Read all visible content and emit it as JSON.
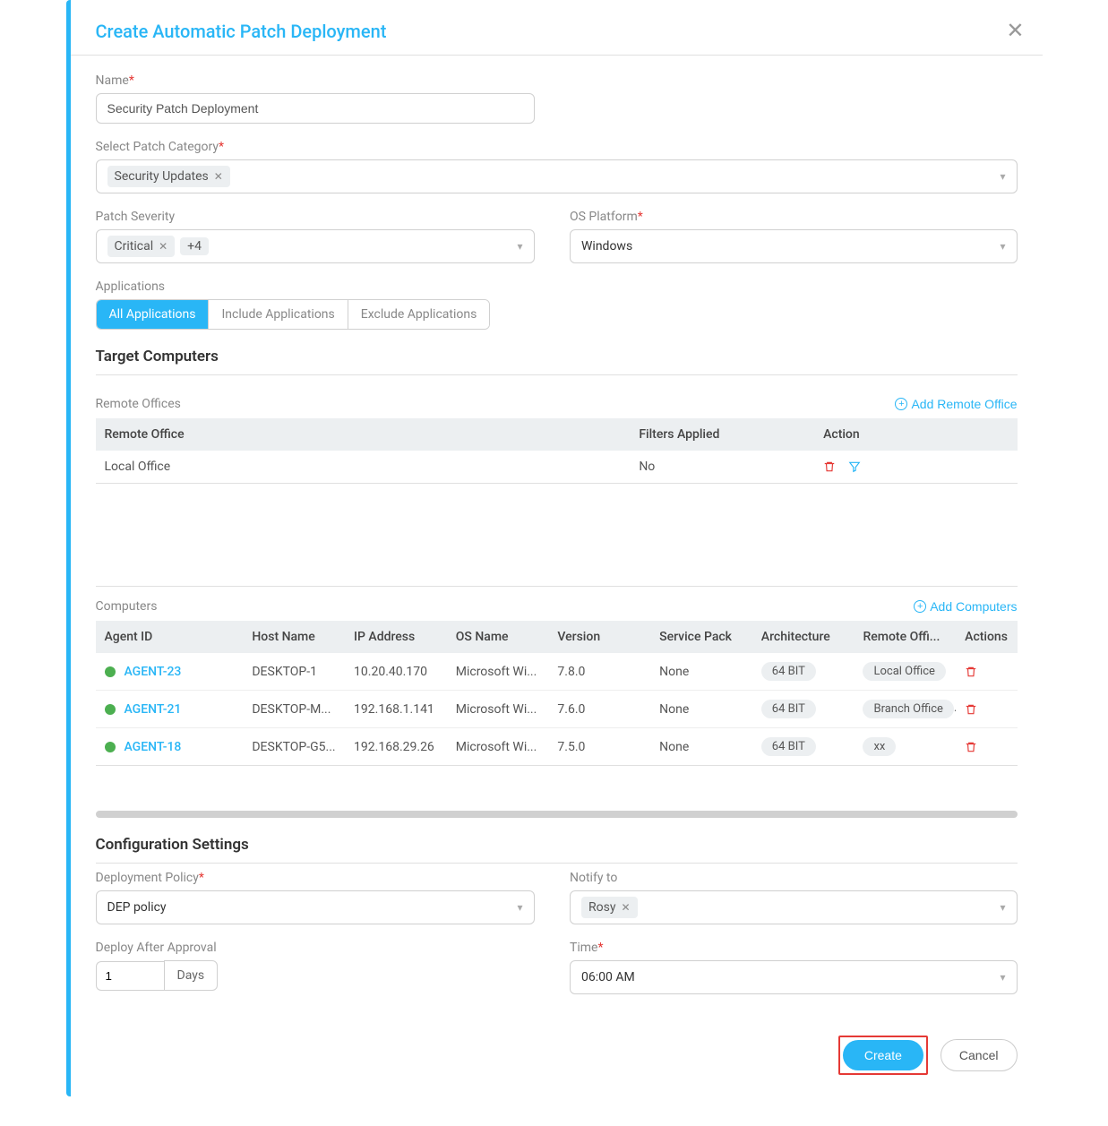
{
  "modal": {
    "title": "Create Automatic Patch Deployment"
  },
  "fields": {
    "name_label": "Name",
    "name_value": "Security Patch Deployment",
    "category_label": "Select Patch Category",
    "category_chip": "Security Updates",
    "severity_label": "Patch Severity",
    "severity_chip": "Critical",
    "severity_more": "+4",
    "platform_label": "OS Platform",
    "platform_value": "Windows",
    "applications_label": "Applications",
    "app_tabs": {
      "all": "All Applications",
      "include": "Include Applications",
      "exclude": "Exclude Applications"
    }
  },
  "target": {
    "section_title": "Target Computers",
    "remote_offices_label": "Remote Offices",
    "add_remote_office": "Add Remote Office",
    "ro_columns": {
      "office": "Remote Office",
      "filters": "Filters Applied",
      "action": "Action"
    },
    "ro_row": {
      "office": "Local Office",
      "filters": "No"
    },
    "computers_label": "Computers",
    "add_computers": "Add Computers",
    "comp_columns": {
      "agent": "Agent ID",
      "host": "Host Name",
      "ip": "IP Address",
      "os": "OS Name",
      "version": "Version",
      "sp": "Service Pack",
      "arch": "Architecture",
      "ro": "Remote Offi...",
      "actions": "Actions"
    },
    "rows": [
      {
        "agent": "AGENT-23",
        "host": "DESKTOP-1",
        "ip": "10.20.40.170",
        "os": "Microsoft Wi...",
        "version": "7.8.0",
        "sp": "None",
        "arch": "64 BIT",
        "ro": "Local Office"
      },
      {
        "agent": "AGENT-21",
        "host": "DESKTOP-M...",
        "ip": "192.168.1.141",
        "os": "Microsoft Wi...",
        "version": "7.6.0",
        "sp": "None",
        "arch": "64 BIT",
        "ro": "Branch Office"
      },
      {
        "agent": "AGENT-18",
        "host": "DESKTOP-G5...",
        "ip": "192.168.29.26",
        "os": "Microsoft Wi...",
        "version": "7.5.0",
        "sp": "None",
        "arch": "64 BIT",
        "ro": "xx"
      }
    ]
  },
  "config": {
    "section_title": "Configuration Settings",
    "deploy_policy_label": "Deployment Policy",
    "deploy_policy_value": "DEP policy",
    "notify_label": "Notify to",
    "notify_chip": "Rosy",
    "deploy_after_label": "Deploy After Approval",
    "deploy_after_value": "1",
    "deploy_after_unit": "Days",
    "time_label": "Time",
    "time_value": "06:00 AM"
  },
  "footer": {
    "create": "Create",
    "cancel": "Cancel"
  }
}
